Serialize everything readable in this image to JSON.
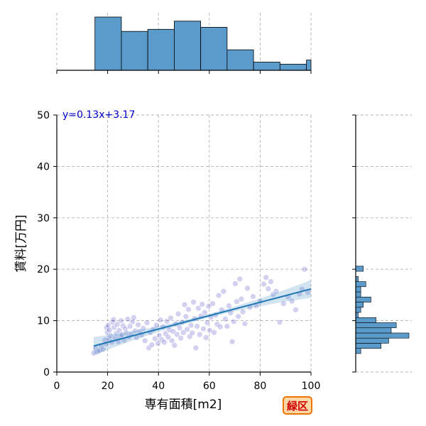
{
  "chart_data": {
    "type": "scatter",
    "xlabel": "専有面積[m2]",
    "ylabel": "賃料[万円]",
    "xlim": [
      0,
      100
    ],
    "ylim": [
      0,
      50
    ],
    "x_ticks": [
      0,
      20,
      40,
      60,
      80,
      100
    ],
    "y_ticks": [
      0,
      10,
      20,
      30,
      40,
      50
    ],
    "grid": true,
    "annotation": "y=0.13x+3.17",
    "regression": {
      "slope": 0.13,
      "intercept": 3.17,
      "x_range": [
        14.5,
        100
      ]
    },
    "colors": {
      "points": "#3333bb",
      "line": "#1f77b4",
      "hist": "#5b9bcb",
      "annotation": "#0000cc"
    },
    "points": [
      [
        14.5,
        3.7
      ],
      [
        15.2,
        4.6
      ],
      [
        16,
        3.9
      ],
      [
        16.8,
        4.2
      ],
      [
        17.5,
        5.1
      ],
      [
        18.2,
        4.4
      ],
      [
        18.9,
        6.2
      ],
      [
        19.3,
        5.5
      ],
      [
        19.6,
        8.6
      ],
      [
        19.9,
        7.7
      ],
      [
        20.2,
        9.1
      ],
      [
        20.5,
        6.4
      ],
      [
        20.8,
        8.2
      ],
      [
        21.2,
        7.1
      ],
      [
        21.6,
        5.8
      ],
      [
        21.9,
        9.7
      ],
      [
        22.3,
        10.2
      ],
      [
        22.6,
        8.7
      ],
      [
        23,
        6.6
      ],
      [
        23.4,
        7.5
      ],
      [
        23.8,
        9.3
      ],
      [
        24.2,
        5.9
      ],
      [
        24.6,
        8.1
      ],
      [
        25,
        6.9
      ],
      [
        25.3,
        10
      ],
      [
        25.7,
        7.3
      ],
      [
        26.1,
        9
      ],
      [
        26.5,
        6.2
      ],
      [
        27,
        8.4
      ],
      [
        27.4,
        7.6
      ],
      [
        27.9,
        10.3
      ],
      [
        28.3,
        6.8
      ],
      [
        28.8,
        8.9
      ],
      [
        29.3,
        7.4
      ],
      [
        29.8,
        9.8
      ],
      [
        30.3,
        10.6
      ],
      [
        30.8,
        8
      ],
      [
        31.4,
        6.7
      ],
      [
        32,
        9.2
      ],
      [
        32.6,
        7.9
      ],
      [
        33.3,
        7.2
      ],
      [
        34,
        8.5
      ],
      [
        34.7,
        6.1
      ],
      [
        35.5,
        9.6
      ],
      [
        36.2,
        4.7
      ],
      [
        36.8,
        7.7
      ],
      [
        37.4,
        5.3
      ],
      [
        38,
        8.3
      ],
      [
        38.6,
        6.5
      ],
      [
        39.2,
        9.1
      ],
      [
        39.8,
        5.6
      ],
      [
        40.3,
        7.1
      ],
      [
        40.8,
        10.1
      ],
      [
        41.3,
        6.3
      ],
      [
        41.8,
        8.8
      ],
      [
        42.3,
        5.8
      ],
      [
        42.8,
        7.5
      ],
      [
        43.3,
        9.9
      ],
      [
        43.8,
        6.8
      ],
      [
        44.3,
        8.2
      ],
      [
        44.8,
        10.5
      ],
      [
        45.3,
        6.1
      ],
      [
        45.8,
        7.9
      ],
      [
        46.3,
        5.2
      ],
      [
        46.8,
        9.4
      ],
      [
        47.3,
        7.3
      ],
      [
        47.8,
        11.3
      ],
      [
        48.3,
        8.6
      ],
      [
        48.8,
        6.6
      ],
      [
        49.3,
        9.7
      ],
      [
        49.8,
        7.7
      ],
      [
        50.3,
        13.1
      ],
      [
        50.8,
        10.8
      ],
      [
        51.3,
        8.3
      ],
      [
        51.8,
        12.2
      ],
      [
        52.3,
        6.9
      ],
      [
        52.8,
        9.1
      ],
      [
        53.3,
        7.6
      ],
      [
        53.8,
        13.6
      ],
      [
        54.2,
        10.4
      ],
      [
        54.7,
        4.7
      ],
      [
        55.2,
        8.9
      ],
      [
        55.7,
        12.4
      ],
      [
        56.2,
        7.3
      ],
      [
        56.7,
        10.9
      ],
      [
        57.2,
        13.2
      ],
      [
        57.7,
        8.4
      ],
      [
        58.2,
        11.6
      ],
      [
        58.7,
        6.7
      ],
      [
        59.2,
        9.6
      ],
      [
        59.7,
        12.8
      ],
      [
        60.2,
        8.1
      ],
      [
        60.7,
        10.7
      ],
      [
        61.3,
        13.3
      ],
      [
        61.9,
        7.7
      ],
      [
        62.5,
        11.1
      ],
      [
        63.1,
        9.3
      ],
      [
        63.7,
        14.9
      ],
      [
        64.3,
        8.8
      ],
      [
        64.9,
        12.1
      ],
      [
        65.6,
        15.7
      ],
      [
        66.3,
        10.3
      ],
      [
        67,
        8.9
      ],
      [
        67.7,
        12.9
      ],
      [
        68.4,
        11.5
      ],
      [
        69,
        5.9
      ],
      [
        69.6,
        9.8
      ],
      [
        70.2,
        17.2
      ],
      [
        70.8,
        13.7
      ],
      [
        71.4,
        10.8
      ],
      [
        72,
        18.1
      ],
      [
        72.6,
        14.2
      ],
      [
        73.2,
        11.7
      ],
      [
        74,
        9.4
      ],
      [
        75,
        16.3
      ],
      [
        76,
        12.6
      ],
      [
        77.2,
        14.7
      ],
      [
        78.5,
        12.9
      ],
      [
        80,
        13.8
      ],
      [
        81.4,
        17.1
      ],
      [
        82.3,
        18.4
      ],
      [
        83.2,
        16.2
      ],
      [
        84.2,
        17.6
      ],
      [
        85.1,
        15.1
      ],
      [
        86.3,
        15.7
      ],
      [
        87.7,
        9.7
      ],
      [
        89.2,
        13.3
      ],
      [
        91,
        14.6
      ],
      [
        92.5,
        13.8
      ],
      [
        94,
        12.1
      ],
      [
        95.5,
        15.2
      ],
      [
        96.5,
        16.1
      ],
      [
        97.5,
        20
      ],
      [
        98.8,
        15.5
      ]
    ],
    "x_histogram": {
      "bin_edges": [
        15,
        25.4,
        35.8,
        46.2,
        56.6,
        67,
        77.4,
        87.8,
        98.2,
        100
      ],
      "counts": [
        26,
        19,
        20,
        24,
        21,
        10,
        4,
        3,
        5
      ]
    },
    "y_histogram": {
      "bin_edges": [
        3.6,
        4.6,
        5.6,
        6.6,
        7.6,
        8.6,
        9.6,
        10.6,
        11.6,
        12.6,
        13.6,
        14.6,
        15.6,
        16.6,
        17.6,
        18.6,
        19.6,
        20.6
      ],
      "counts": [
        2,
        10,
        13,
        21,
        14,
        16,
        8,
        1,
        2,
        3,
        6,
        2,
        2,
        4,
        1,
        0,
        3
      ]
    }
  },
  "region_badge": "緑区"
}
